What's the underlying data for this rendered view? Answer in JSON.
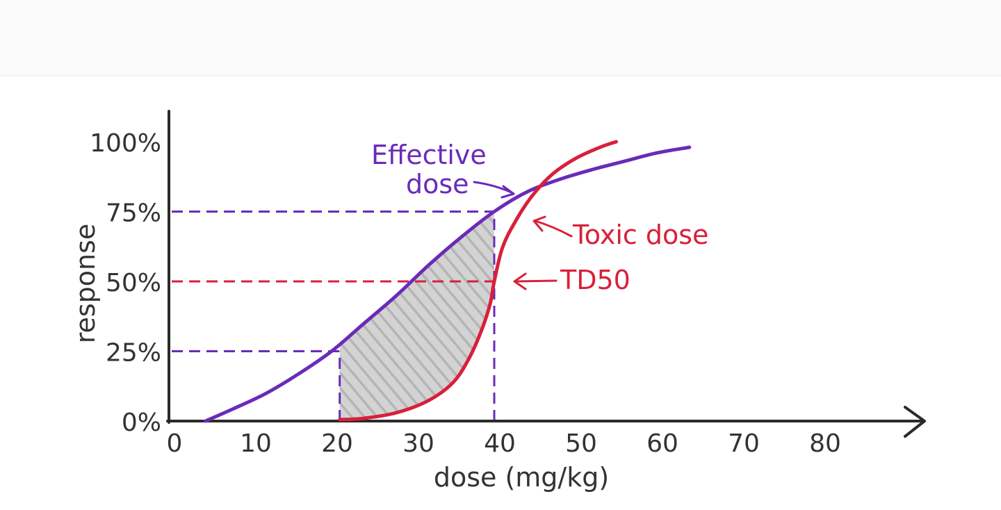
{
  "colors": {
    "effective": "#6a2bb8",
    "toxic": "#d8203a",
    "shade": "#c6c6c6",
    "axis": "#2a2a2a",
    "text": "#333333"
  },
  "chart_data": {
    "type": "line",
    "title": "",
    "xlabel": "dose (mg/kg)",
    "ylabel": "response",
    "xlim": [
      0,
      88
    ],
    "ylim": [
      0,
      100
    ],
    "x_ticks": [
      0,
      10,
      20,
      30,
      40,
      50,
      60,
      70,
      80
    ],
    "x_tick_labels": [
      "0",
      "10",
      "20",
      "30",
      "40",
      "50",
      "60",
      "70",
      "80"
    ],
    "y_ticks": [
      0,
      25,
      50,
      75,
      100
    ],
    "y_tick_labels": [
      "0%",
      "25%",
      "50%",
      "75%",
      "100%"
    ],
    "grid": false,
    "series": [
      {
        "name": "Effective dose",
        "x": [
          4.5,
          8,
          12,
          16,
          20,
          24,
          28,
          32,
          36,
          40,
          44,
          48,
          52,
          56,
          60,
          64
        ],
        "y": [
          0,
          4.5,
          10,
          17,
          25,
          35,
          45,
          56,
          66,
          75,
          82,
          86.5,
          90,
          93,
          96,
          98
        ]
      },
      {
        "name": "Toxic dose",
        "x": [
          21,
          24,
          28,
          32,
          35,
          37,
          38.5,
          39.5,
          40,
          41,
          42.5,
          44.5,
          47,
          50,
          53,
          55
        ],
        "y": [
          0.5,
          1,
          3,
          7.5,
          14,
          23,
          33,
          42,
          50,
          62,
          71,
          80,
          88,
          94,
          98,
          100
        ]
      }
    ],
    "reference_lines": [
      {
        "kind": "horizontal",
        "y": 75,
        "from_x": 0,
        "to_x": 40,
        "color": "effective"
      },
      {
        "kind": "horizontal",
        "y": 25,
        "from_x": 0,
        "to_x": 21,
        "color": "effective"
      },
      {
        "kind": "horizontal",
        "y": 50,
        "from_x": 0,
        "to_x": 40,
        "color": "toxic"
      },
      {
        "kind": "vertical",
        "x": 21,
        "from_y": 0,
        "to_y": 25,
        "color": "effective"
      },
      {
        "kind": "vertical",
        "x": 40,
        "from_y": 0,
        "to_y": 75,
        "color": "effective"
      }
    ],
    "shaded_region": {
      "from_x": 21,
      "to_x": 40,
      "description": "between effective and toxic curves"
    },
    "annotations": [
      {
        "text": [
          "Effective",
          "dose"
        ],
        "color": "effective",
        "points_to": {
          "x": 42,
          "y": 81
        }
      },
      {
        "text": [
          "Toxic dose"
        ],
        "color": "toxic",
        "points_to": {
          "x": 44,
          "y": 72
        }
      },
      {
        "text": [
          "TD50"
        ],
        "color": "toxic",
        "points_to": {
          "x": 40,
          "y": 50
        }
      }
    ]
  }
}
